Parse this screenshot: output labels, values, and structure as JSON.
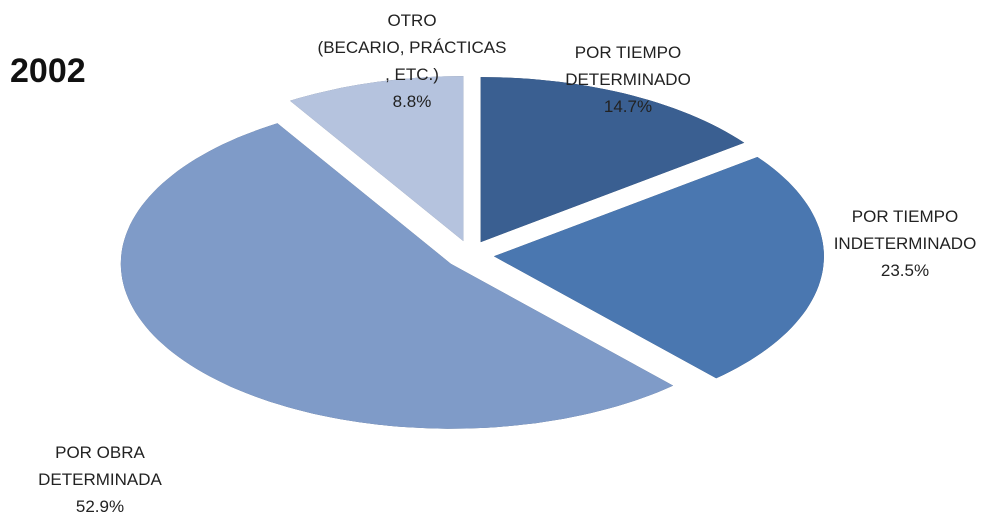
{
  "chart_data": {
    "type": "pie",
    "title": "2002",
    "categories": [
      "POR TIEMPO\nDETERMINADO",
      "POR TIEMPO\nINDETERMINADO",
      "POR OBRA\nDETERMINADA",
      "OTRO\n(BECARIO, PRÁCTICAS\n, ETC.)"
    ],
    "values": [
      14.7,
      23.5,
      52.9,
      8.8
    ],
    "value_labels": [
      "14.7%",
      "23.5%",
      "52.9%",
      "8.8%"
    ],
    "colors": [
      "#3a5f91",
      "#4a77b0",
      "#7f9bc8",
      "#b5c3de"
    ]
  }
}
